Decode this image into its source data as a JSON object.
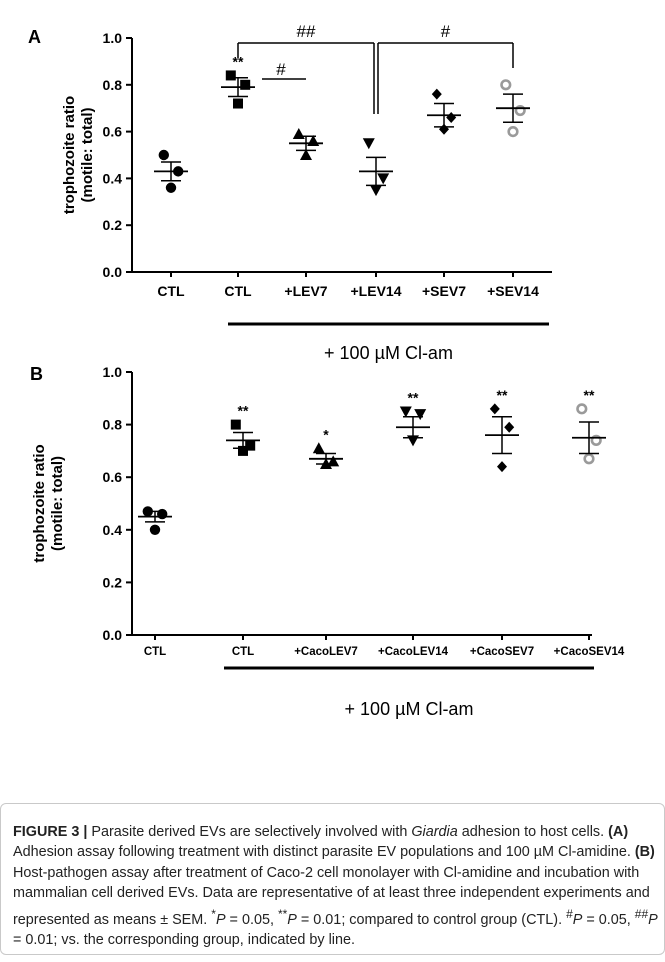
{
  "chart_data": [
    {
      "type": "scatter",
      "panel_label": "A",
      "ylabel_line1": "trophozoite ratio",
      "ylabel_line2": "(motile: total)",
      "ylim": [
        0,
        1.0
      ],
      "yticks": [
        "0.0",
        "0.2",
        "0.4",
        "0.6",
        "0.8",
        "1.0"
      ],
      "categories": [
        "CTL",
        "CTL",
        "+LEV7",
        "+LEV14",
        "+SEV7",
        "+SEV14"
      ],
      "markers": [
        "circle",
        "square",
        "triangle",
        "triangle-down",
        "diamond",
        "open-circle"
      ],
      "points": [
        [
          0.5,
          0.43,
          0.36
        ],
        [
          0.84,
          0.8,
          0.72
        ],
        [
          0.59,
          0.56,
          0.5
        ],
        [
          0.55,
          0.4,
          0.35
        ],
        [
          0.76,
          0.66,
          0.61
        ],
        [
          0.8,
          0.69,
          0.6
        ]
      ],
      "means": [
        0.43,
        0.79,
        0.55,
        0.43,
        0.67,
        0.7
      ],
      "sems": [
        0.04,
        0.04,
        0.03,
        0.06,
        0.05,
        0.06
      ],
      "stars": [
        "",
        "**",
        "",
        "",
        "",
        ""
      ],
      "treatment_label": "+ 100 µM Cl-am",
      "comparisons": [
        {
          "from": 1,
          "to": 3,
          "label": "##"
        },
        {
          "from": 3,
          "to": 5,
          "label": "#"
        },
        {
          "from": 1,
          "to": 2,
          "label": "#"
        }
      ]
    },
    {
      "type": "scatter",
      "panel_label": "B",
      "ylabel_line1": "trophozoite ratio",
      "ylabel_line2": "(motile: total)",
      "ylim": [
        0,
        1.0
      ],
      "yticks": [
        "0.0",
        "0.2",
        "0.4",
        "0.6",
        "0.8",
        "1.0"
      ],
      "categories": [
        "CTL",
        "CTL",
        "+CacoLEV7",
        "+CacoLEV14",
        "+CacoSEV7",
        "+CacoSEV14"
      ],
      "markers": [
        "circle",
        "square",
        "triangle",
        "triangle-down",
        "diamond",
        "open-circle"
      ],
      "points": [
        [
          0.47,
          0.46,
          0.4
        ],
        [
          0.8,
          0.72,
          0.7
        ],
        [
          0.71,
          0.66,
          0.65
        ],
        [
          0.85,
          0.84,
          0.74
        ],
        [
          0.86,
          0.79,
          0.64
        ],
        [
          0.86,
          0.74,
          0.67
        ]
      ],
      "means": [
        0.45,
        0.74,
        0.67,
        0.79,
        0.76,
        0.75
      ],
      "sems": [
        0.02,
        0.03,
        0.02,
        0.04,
        0.07,
        0.06
      ],
      "stars": [
        "",
        "**",
        "*",
        "**",
        "**",
        "**"
      ],
      "treatment_label": "+ 100 µM Cl-am"
    }
  ],
  "caption": {
    "figure_label": "FIGURE 3 |",
    "intro_1": " Parasite derived EVs are selectively involved with ",
    "intro_italic": "Giardia",
    "intro_2": " adhesion to host cells. ",
    "a_label": "(A)",
    "a_text": " Adhesion assay following treatment with distinct parasite EV populations and 100 µM Cl-amidine. ",
    "b_label": "(B)",
    "b_text": " Host-pathogen assay after treatment of Caco-2 cell monolayer with Cl-amidine and incubation with mammalian cell derived EVs. Data are representative of at least three independent experiments and represented as means ± SEM. ",
    "p1": "*",
    "p1_i": "P",
    "p1_t": " = 0.05, ",
    "p2": "**",
    "p2_i": "P",
    "p2_t": " = 0.01; compared to control group (CTL). ",
    "p3": "#",
    "p3_i": "P",
    "p3_t": " = 0.05, ",
    "p4": "##",
    "p4_i": "P",
    "p4_t": " = 0.01; vs. the corresponding group, indicated by line."
  }
}
